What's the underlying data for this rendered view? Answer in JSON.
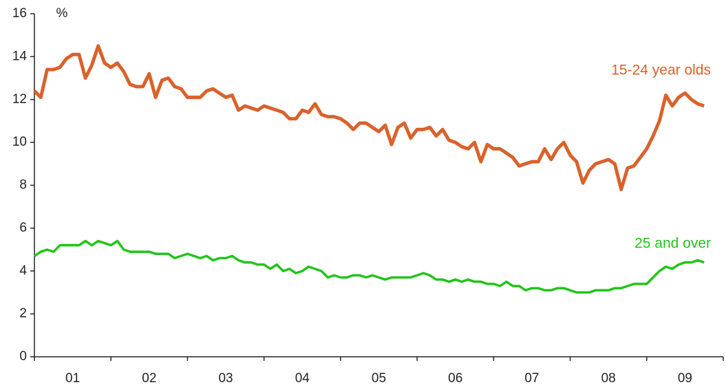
{
  "chart_data": {
    "type": "line",
    "y_label": "%",
    "categories": [
      null,
      null,
      null,
      null,
      null,
      null,
      "01",
      null,
      null,
      null,
      null,
      null,
      null,
      null,
      null,
      null,
      null,
      null,
      "02",
      null,
      null,
      null,
      null,
      null,
      null,
      null,
      null,
      null,
      null,
      null,
      "03",
      null,
      null,
      null,
      null,
      null,
      null,
      null,
      null,
      null,
      null,
      null,
      "04",
      null,
      null,
      null,
      null,
      null,
      null,
      null,
      null,
      null,
      null,
      null,
      "05",
      null,
      null,
      null,
      null,
      null,
      null,
      null,
      null,
      null,
      null,
      null,
      "06",
      null,
      null,
      null,
      null,
      null,
      null,
      null,
      null,
      null,
      null,
      null,
      "07",
      null,
      null,
      null,
      null,
      null,
      null,
      null,
      null,
      null,
      null,
      null,
      "08",
      null,
      null,
      null,
      null,
      null,
      null,
      null,
      null,
      null,
      null,
      null,
      "09",
      null,
      null,
      null
    ],
    "series": [
      {
        "name": "15-24 year olds",
        "color": "#d9622b",
        "values": [
          12.4,
          12.1,
          13.4,
          13.4,
          13.5,
          13.9,
          14.1,
          14.1,
          13.0,
          13.6,
          14.5,
          13.7,
          13.5,
          13.7,
          13.3,
          12.7,
          12.6,
          12.6,
          13.2,
          12.1,
          12.9,
          13.0,
          12.6,
          12.5,
          12.1,
          12.1,
          12.1,
          12.4,
          12.5,
          12.3,
          12.1,
          12.2,
          11.5,
          11.7,
          11.6,
          11.5,
          11.7,
          11.6,
          11.5,
          11.4,
          11.1,
          11.1,
          11.5,
          11.4,
          11.8,
          11.3,
          11.2,
          11.2,
          11.1,
          10.9,
          10.6,
          10.9,
          10.9,
          10.7,
          10.5,
          10.8,
          9.9,
          10.7,
          10.9,
          10.2,
          10.6,
          10.6,
          10.7,
          10.3,
          10.6,
          10.1,
          10.0,
          9.8,
          9.7,
          10.0,
          9.1,
          9.9,
          9.7,
          9.7,
          9.5,
          9.3,
          8.9,
          9.0,
          9.1,
          9.1,
          9.7,
          9.2,
          9.7,
          10.0,
          9.4,
          9.1,
          8.1,
          8.7,
          9.0,
          9.1,
          9.2,
          9.0,
          7.8,
          8.8,
          8.9,
          9.3,
          9.7,
          10.3,
          11.0,
          12.2,
          11.7,
          12.1,
          12.3,
          12.0,
          11.8,
          11.7
        ]
      },
      {
        "name": "25 and over",
        "color": "#22c41a",
        "values": [
          4.7,
          4.9,
          5.0,
          4.9,
          5.2,
          5.2,
          5.2,
          5.2,
          5.4,
          5.2,
          5.4,
          5.3,
          5.2,
          5.4,
          5.0,
          4.9,
          4.9,
          4.9,
          4.9,
          4.8,
          4.8,
          4.8,
          4.6,
          4.7,
          4.8,
          4.7,
          4.6,
          4.7,
          4.5,
          4.6,
          4.6,
          4.7,
          4.5,
          4.4,
          4.4,
          4.3,
          4.3,
          4.1,
          4.3,
          4.0,
          4.1,
          3.9,
          4.0,
          4.2,
          4.1,
          4.0,
          3.7,
          3.8,
          3.7,
          3.7,
          3.8,
          3.8,
          3.7,
          3.8,
          3.7,
          3.6,
          3.7,
          3.7,
          3.7,
          3.7,
          3.8,
          3.9,
          3.8,
          3.6,
          3.6,
          3.5,
          3.6,
          3.5,
          3.6,
          3.5,
          3.5,
          3.4,
          3.4,
          3.3,
          3.5,
          3.3,
          3.3,
          3.1,
          3.2,
          3.2,
          3.1,
          3.1,
          3.2,
          3.2,
          3.1,
          3.0,
          3.0,
          3.0,
          3.1,
          3.1,
          3.1,
          3.2,
          3.2,
          3.3,
          3.4,
          3.4,
          3.4,
          3.7,
          4.0,
          4.2,
          4.1,
          4.3,
          4.4,
          4.4,
          4.5,
          4.4
        ]
      }
    ],
    "ylim": [
      0,
      16
    ],
    "yticks": [
      0,
      2,
      4,
      6,
      8,
      10,
      12,
      14,
      16
    ]
  }
}
